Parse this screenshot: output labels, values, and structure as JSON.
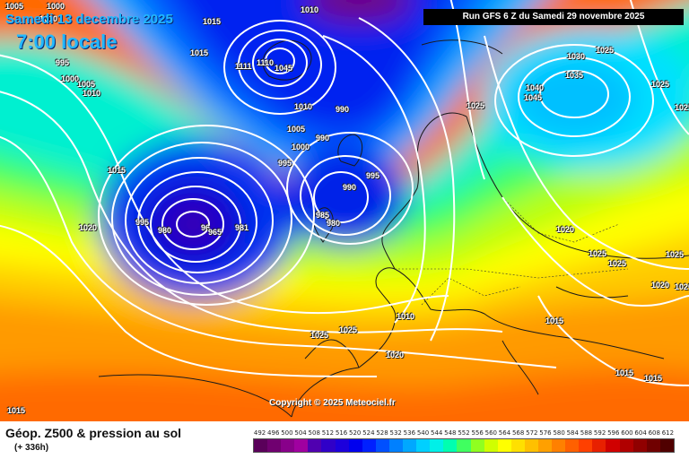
{
  "header": {
    "date": "Samedi 13 decembre 2025",
    "time": "7:00 locale",
    "run": "Run GFS 6 Z du Samedi 29 novembre 2025"
  },
  "copyright": "Copyright © 2025 Meteociel.fr",
  "footer": {
    "title": "Géop. Z500 & pression au sol",
    "subtitle": "(+ 336h)"
  },
  "isobar_labels": [
    "1005",
    "1000",
    "1010",
    "1015",
    "1015",
    "995",
    "1000",
    "1005",
    "1010",
    "1015",
    "1020",
    "1010",
    "1045",
    "1110",
    "1111",
    "1010",
    "990",
    "1005",
    "1000",
    "990",
    "995",
    "995",
    "990",
    "985",
    "980",
    "995",
    "980",
    "96",
    "965",
    "981",
    "1030",
    "1025",
    "1025",
    "1040",
    "1045",
    "1035",
    "1025",
    "1025",
    "1025",
    "1020",
    "1025",
    "1025",
    "1020",
    "1020",
    "1015",
    "1015",
    "1015",
    "1010",
    "1020",
    "1025",
    "1025",
    "1015"
  ],
  "scale": {
    "labels": [
      "492",
      "496",
      "500",
      "504",
      "508",
      "512",
      "516",
      "520",
      "524",
      "528",
      "532",
      "536",
      "540",
      "544",
      "548",
      "552",
      "556",
      "560",
      "564",
      "568",
      "572",
      "576",
      "580",
      "584",
      "588",
      "592",
      "596",
      "600",
      "604",
      "608",
      "612"
    ],
    "colors": [
      "#5a005a",
      "#700070",
      "#88008a",
      "#a000a0",
      "#5000b0",
      "#3000c8",
      "#1c00dc",
      "#0000ee",
      "#0020ff",
      "#0050ff",
      "#0080ff",
      "#00a8ff",
      "#00d0ff",
      "#00f0e8",
      "#00ffb0",
      "#40ff60",
      "#90ff20",
      "#d0ff00",
      "#ffff00",
      "#ffe000",
      "#ffc000",
      "#ffa000",
      "#ff8000",
      "#ff6000",
      "#ff4000",
      "#e82000",
      "#d00000",
      "#b00000",
      "#900000",
      "#700000",
      "#500000"
    ]
  }
}
